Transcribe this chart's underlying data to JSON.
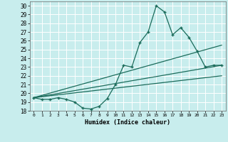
{
  "xlabel": "Humidex (Indice chaleur)",
  "bg_color": "#c8eded",
  "grid_color": "#b0d8d8",
  "line_color": "#1a6b5a",
  "xlim": [
    -0.5,
    23.5
  ],
  "ylim": [
    18,
    30.5
  ],
  "xticks": [
    0,
    1,
    2,
    3,
    4,
    5,
    6,
    7,
    8,
    9,
    10,
    11,
    12,
    13,
    14,
    15,
    16,
    17,
    18,
    19,
    20,
    21,
    22,
    23
  ],
  "yticks": [
    18,
    19,
    20,
    21,
    22,
    23,
    24,
    25,
    26,
    27,
    28,
    29,
    30
  ],
  "series1": [
    19.5,
    19.3,
    19.3,
    19.5,
    19.3,
    19.0,
    18.3,
    18.2,
    18.5,
    19.4,
    21.0,
    23.2,
    23.0,
    25.8,
    27.0,
    30.0,
    29.3,
    26.7,
    27.5,
    26.4,
    24.8,
    23.0,
    23.2,
    23.2
  ],
  "line2_x": [
    0,
    23
  ],
  "line2_y": [
    19.5,
    23.2
  ],
  "line3_x": [
    0,
    23
  ],
  "line3_y": [
    19.5,
    25.5
  ],
  "line4_x": [
    0,
    23
  ],
  "line4_y": [
    19.5,
    22.0
  ]
}
